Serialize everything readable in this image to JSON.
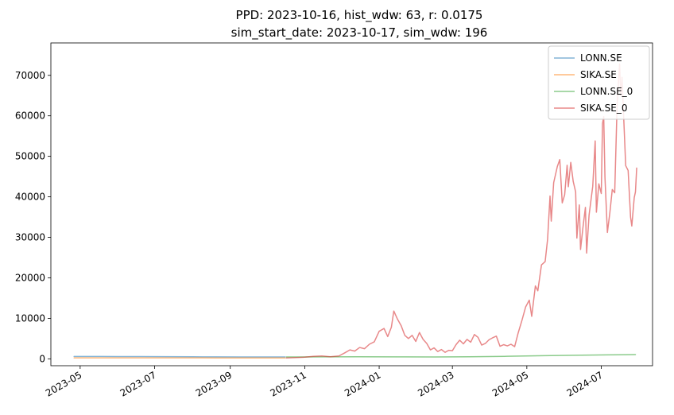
{
  "chart_data": {
    "type": "line",
    "title": "PPD: 2023-10-16, hist_wdw: 63, r: 0.0175",
    "subtitle": "sim_start_date: 2023-10-17, sim_wdw: 196",
    "xlabel": "",
    "ylabel": "",
    "x_axis": {
      "type": "date",
      "range": [
        "2023-04-07",
        "2024-08-12"
      ],
      "ticks": [
        "2023-05-01",
        "2023-07-01",
        "2023-09-01",
        "2023-11-01",
        "2024-01-01",
        "2024-03-01",
        "2024-05-01",
        "2024-07-01"
      ],
      "tick_labels": [
        "2023-05",
        "2023-07",
        "2023-09",
        "2023-11",
        "2024-01",
        "2024-03",
        "2024-05",
        "2024-07"
      ]
    },
    "y_axis": {
      "range": [
        -1700,
        78000
      ],
      "ticks": [
        0,
        10000,
        20000,
        30000,
        40000,
        50000,
        60000,
        70000
      ],
      "tick_labels": [
        "0",
        "10000",
        "20000",
        "30000",
        "40000",
        "50000",
        "60000",
        "70000"
      ]
    },
    "grid": false,
    "legend_position": "top-right",
    "series": [
      {
        "name": "LONN.SE",
        "color": "#1f77b4",
        "points": [
          [
            "2023-04-26",
            590
          ],
          [
            "2023-05-15",
            585
          ],
          [
            "2023-06-01",
            560
          ],
          [
            "2023-06-20",
            545
          ],
          [
            "2023-07-10",
            530
          ],
          [
            "2023-08-01",
            500
          ],
          [
            "2023-08-20",
            480
          ],
          [
            "2023-09-10",
            470
          ],
          [
            "2023-10-01",
            460
          ],
          [
            "2023-10-16",
            455
          ]
        ]
      },
      {
        "name": "SIKA.SE",
        "color": "#ff7f0e",
        "points": [
          [
            "2023-04-26",
            250
          ],
          [
            "2023-05-15",
            245
          ],
          [
            "2023-06-01",
            240
          ],
          [
            "2023-06-20",
            238
          ],
          [
            "2023-07-10",
            232
          ],
          [
            "2023-08-01",
            228
          ],
          [
            "2023-08-20",
            225
          ],
          [
            "2023-09-10",
            222
          ],
          [
            "2023-10-01",
            220
          ],
          [
            "2023-10-16",
            218
          ]
        ]
      },
      {
        "name": "LONN.SE_0",
        "color": "#2ca02c",
        "points": [
          [
            "2023-10-17",
            455
          ],
          [
            "2023-11-15",
            480
          ],
          [
            "2023-12-15",
            500
          ],
          [
            "2024-01-15",
            480
          ],
          [
            "2024-02-15",
            460
          ],
          [
            "2024-03-15",
            520
          ],
          [
            "2024-04-15",
            620
          ],
          [
            "2024-05-15",
            780
          ],
          [
            "2024-06-15",
            900
          ],
          [
            "2024-07-15",
            1000
          ],
          [
            "2024-07-29",
            1050
          ]
        ]
      },
      {
        "name": "SIKA.SE_0",
        "color": "#d62728",
        "points": [
          [
            "2023-10-17",
            218
          ],
          [
            "2023-10-25",
            300
          ],
          [
            "2023-11-01",
            400
          ],
          [
            "2023-11-08",
            600
          ],
          [
            "2023-11-15",
            700
          ],
          [
            "2023-11-22",
            500
          ],
          [
            "2023-11-29",
            700
          ],
          [
            "2023-12-04",
            1500
          ],
          [
            "2023-12-08",
            2200
          ],
          [
            "2023-12-12",
            1900
          ],
          [
            "2023-12-16",
            2800
          ],
          [
            "2023-12-20",
            2500
          ],
          [
            "2023-12-24",
            3600
          ],
          [
            "2023-12-28",
            4200
          ],
          [
            "2024-01-01",
            6800
          ],
          [
            "2024-01-05",
            7500
          ],
          [
            "2024-01-08",
            5500
          ],
          [
            "2024-01-11",
            7800
          ],
          [
            "2024-01-13",
            11800
          ],
          [
            "2024-01-16",
            9800
          ],
          [
            "2024-01-19",
            8200
          ],
          [
            "2024-01-22",
            5800
          ],
          [
            "2024-01-25",
            5000
          ],
          [
            "2024-01-28",
            5800
          ],
          [
            "2024-01-31",
            4300
          ],
          [
            "2024-02-03",
            6500
          ],
          [
            "2024-02-06",
            4800
          ],
          [
            "2024-02-09",
            3800
          ],
          [
            "2024-02-12",
            2200
          ],
          [
            "2024-02-15",
            2700
          ],
          [
            "2024-02-18",
            1800
          ],
          [
            "2024-02-21",
            2300
          ],
          [
            "2024-02-24",
            1600
          ],
          [
            "2024-02-27",
            2100
          ],
          [
            "2024-03-01",
            2000
          ],
          [
            "2024-03-04",
            3500
          ],
          [
            "2024-03-07",
            4600
          ],
          [
            "2024-03-10",
            3700
          ],
          [
            "2024-03-13",
            4800
          ],
          [
            "2024-03-16",
            4100
          ],
          [
            "2024-03-19",
            6000
          ],
          [
            "2024-03-22",
            5300
          ],
          [
            "2024-03-25",
            3400
          ],
          [
            "2024-03-28",
            3800
          ],
          [
            "2024-03-31",
            4700
          ],
          [
            "2024-04-03",
            5200
          ],
          [
            "2024-04-06",
            5600
          ],
          [
            "2024-04-09",
            3100
          ],
          [
            "2024-04-12",
            3500
          ],
          [
            "2024-04-15",
            3200
          ],
          [
            "2024-04-18",
            3600
          ],
          [
            "2024-04-21",
            3000
          ],
          [
            "2024-04-24",
            6500
          ],
          [
            "2024-04-27",
            9500
          ],
          [
            "2024-04-30",
            12800
          ],
          [
            "2024-05-03",
            14500
          ],
          [
            "2024-05-05",
            10500
          ],
          [
            "2024-05-08",
            18000
          ],
          [
            "2024-05-10",
            16800
          ],
          [
            "2024-05-13",
            23200
          ],
          [
            "2024-05-16",
            24000
          ],
          [
            "2024-05-18",
            29500
          ],
          [
            "2024-05-20",
            40200
          ],
          [
            "2024-05-21",
            34000
          ],
          [
            "2024-05-23",
            43500
          ],
          [
            "2024-05-26",
            47500
          ],
          [
            "2024-05-28",
            49200
          ],
          [
            "2024-05-30",
            38500
          ],
          [
            "2024-06-01",
            40500
          ],
          [
            "2024-06-03",
            47800
          ],
          [
            "2024-06-04",
            42500
          ],
          [
            "2024-06-06",
            48500
          ],
          [
            "2024-06-08",
            43800
          ],
          [
            "2024-06-10",
            41200
          ],
          [
            "2024-06-11",
            29800
          ],
          [
            "2024-06-13",
            38000
          ],
          [
            "2024-06-14",
            27000
          ],
          [
            "2024-06-16",
            32500
          ],
          [
            "2024-06-18",
            37400
          ],
          [
            "2024-06-19",
            26100
          ],
          [
            "2024-06-21",
            35500
          ],
          [
            "2024-06-24",
            42600
          ],
          [
            "2024-06-26",
            53800
          ],
          [
            "2024-06-27",
            36200
          ],
          [
            "2024-06-29",
            43200
          ],
          [
            "2024-07-01",
            40800
          ],
          [
            "2024-07-02",
            58100
          ],
          [
            "2024-07-03",
            59800
          ],
          [
            "2024-07-04",
            44900
          ],
          [
            "2024-07-06",
            31200
          ],
          [
            "2024-07-08",
            36000
          ],
          [
            "2024-07-10",
            41800
          ],
          [
            "2024-07-12",
            41000
          ],
          [
            "2024-07-14",
            63000
          ],
          [
            "2024-07-16",
            72800
          ],
          [
            "2024-07-17",
            65000
          ],
          [
            "2024-07-18",
            69500
          ],
          [
            "2024-07-20",
            55000
          ],
          [
            "2024-07-21",
            47700
          ],
          [
            "2024-07-23",
            46500
          ],
          [
            "2024-07-25",
            35000
          ],
          [
            "2024-07-26",
            32800
          ],
          [
            "2024-07-28",
            39800
          ],
          [
            "2024-07-29",
            41200
          ],
          [
            "2024-07-30",
            47100
          ]
        ]
      }
    ]
  }
}
